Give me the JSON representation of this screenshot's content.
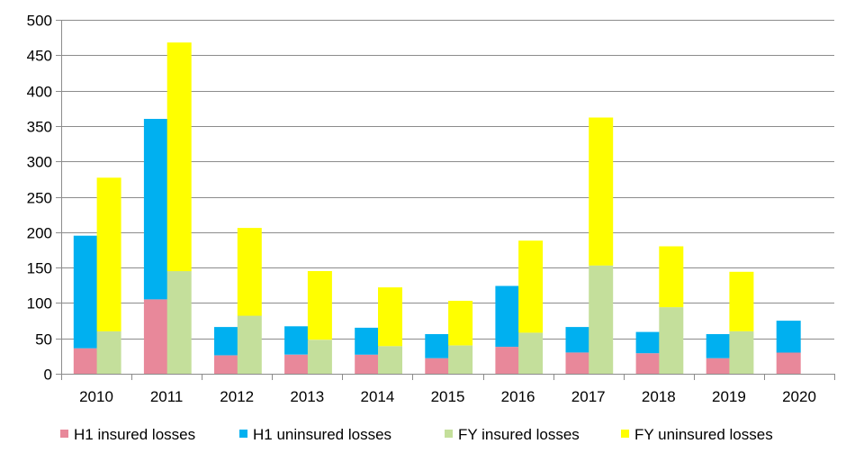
{
  "chart_data": {
    "type": "bar",
    "stacked": true,
    "grouped": true,
    "categories": [
      "2010",
      "2011",
      "2012",
      "2013",
      "2014",
      "2015",
      "2016",
      "2017",
      "2018",
      "2019",
      "2020"
    ],
    "y_ticks": [
      "0",
      "50",
      "100",
      "150",
      "200",
      "250",
      "300",
      "350",
      "400",
      "450",
      "500"
    ],
    "ylim": [
      0,
      500
    ],
    "grid": true,
    "legend_position": "bottom",
    "groups": [
      {
        "name": "H1",
        "series": [
          {
            "name": "H1 insured losses",
            "color": "#E8889A",
            "values": [
              36,
              105,
              26,
              27,
              27,
              22,
              38,
              30,
              29,
              22,
              30
            ]
          },
          {
            "name": "H1 uninsured losses",
            "color": "#00B0F0",
            "values": [
              159,
              255,
              40,
              40,
              38,
              34,
              86,
              36,
              30,
              34,
              45
            ]
          }
        ]
      },
      {
        "name": "FY",
        "series": [
          {
            "name": "FY insured losses",
            "color": "#C4DF9B",
            "values": [
              60,
              145,
              82,
              48,
              39,
              40,
              58,
              153,
              94,
              60,
              null
            ]
          },
          {
            "name": "FY uninsured losses",
            "color": "#FFFF00",
            "values": [
              217,
              323,
              124,
              97,
              83,
              63,
              130,
              209,
              86,
              84,
              null
            ]
          }
        ]
      }
    ]
  }
}
